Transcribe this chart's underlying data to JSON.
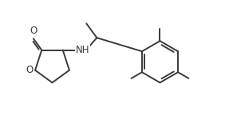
{
  "bg_color": "#ffffff",
  "line_color": "#3a3a3a",
  "text_color": "#3a3a3a",
  "line_width": 1.4,
  "font_size": 8.5,
  "figsize": [
    2.92,
    1.45
  ],
  "dpi": 100,
  "xlim": [
    -0.5,
    9.5
  ],
  "ylim": [
    -2.8,
    3.2
  ]
}
